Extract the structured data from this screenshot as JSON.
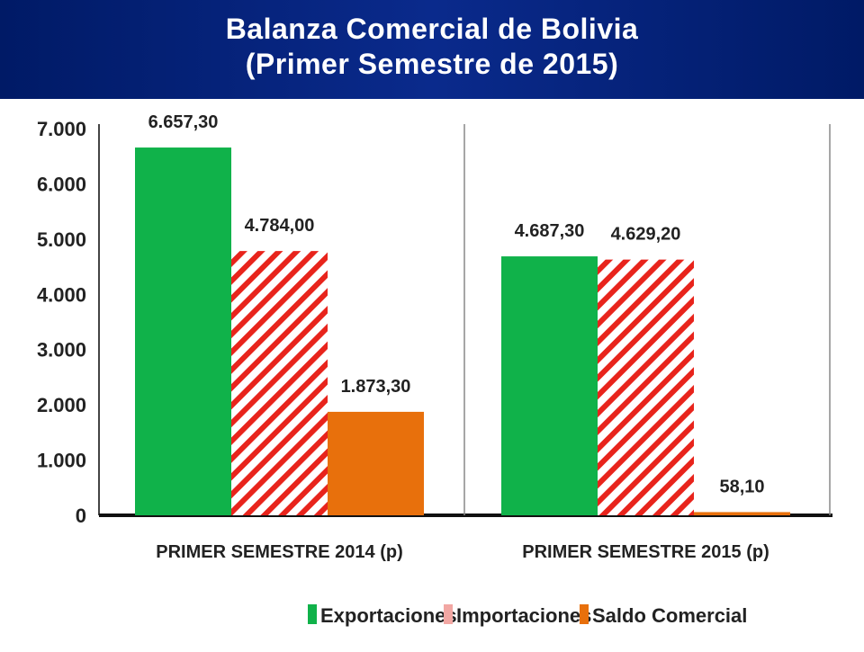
{
  "title_line1": "Balanza Comercial de Bolivia",
  "title_line2": "(Primer Semestre de 2015)",
  "chart_data": {
    "type": "bar",
    "title": "Balanza Comercial de Bolivia (Primer Semestre de 2015)",
    "categories": [
      "PRIMER SEMESTRE 2014 (p)",
      "PRIMER SEMESTRE 2015 (p)"
    ],
    "series": [
      {
        "name": "Exportaciones",
        "values": [
          6657.3,
          4687.3
        ],
        "labels": [
          "6.657,30",
          "4.687,30"
        ],
        "color": "#10b24a",
        "pattern": "solid"
      },
      {
        "name": "Importaciones",
        "values": [
          4784.0,
          4629.2
        ],
        "labels": [
          "4.784,00",
          "4.629,20"
        ],
        "color": "#e8241c",
        "pattern": "hatched"
      },
      {
        "name": "Saldo Comercial",
        "values": [
          1873.3,
          58.1
        ],
        "labels": [
          "1.873,30",
          "58,10"
        ],
        "color": "#e8700c",
        "pattern": "solid"
      }
    ],
    "yticks": [
      "0",
      "1.000",
      "2.000",
      "3.000",
      "4.000",
      "5.000",
      "6.000",
      "7.000"
    ],
    "ylim": [
      0,
      7000
    ],
    "xlabel": "",
    "ylabel": "",
    "legend_position": "bottom",
    "grid": false
  }
}
